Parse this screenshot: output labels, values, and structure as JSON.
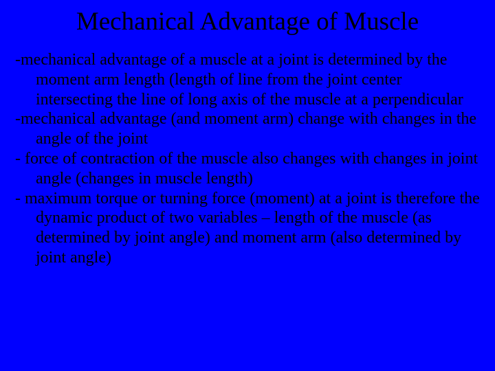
{
  "slide": {
    "background_color": "#0000ff",
    "text_color": "#000000",
    "font_family": "Times New Roman",
    "title": "Mechanical Advantage of Muscle",
    "title_fontsize": 37,
    "body_fontsize": 24,
    "bullets": [
      "-mechanical advantage of a muscle at a joint is determined by the moment arm length (length of line from the joint center  intersecting the line of long axis of the muscle at a perpendicular",
      "-mechanical advantage (and moment arm) change with changes in the angle of the joint",
      "- force of contraction of the muscle also changes with changes in joint angle (changes in muscle length)",
      "- maximum torque or turning force (moment) at a joint is therefore the dynamic product of two variables – length of the muscle (as determined by joint angle) and moment arm (also determined by joint angle)"
    ]
  }
}
